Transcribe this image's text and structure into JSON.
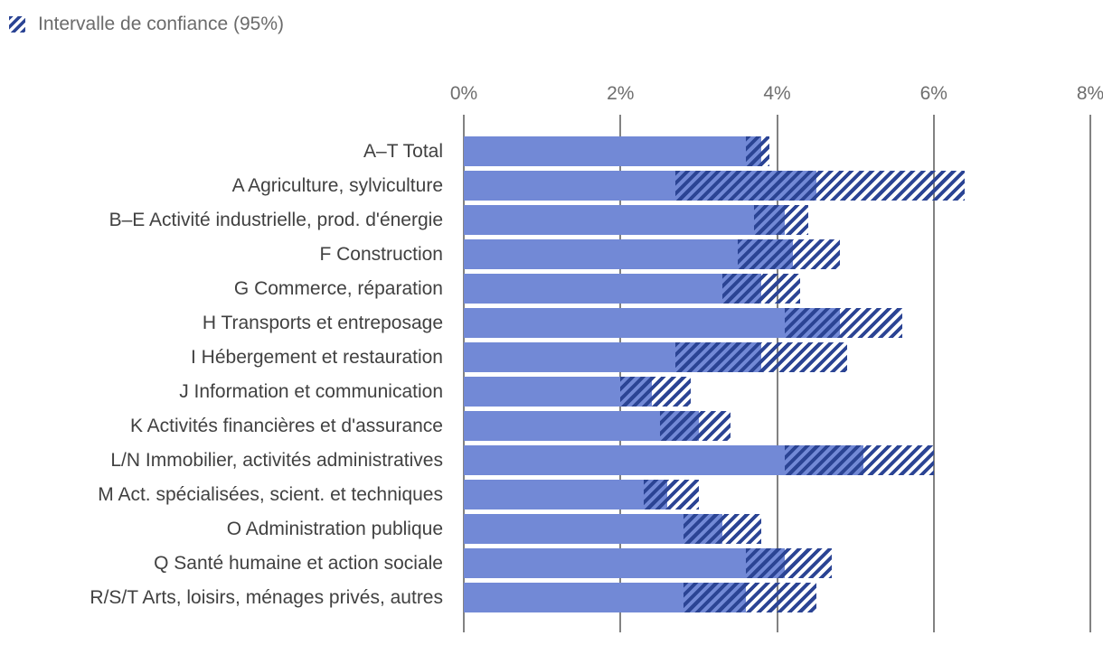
{
  "legend": {
    "label": "Intervalle de confiance (95%)",
    "swatch_icon": "diagonal-hatch-swatch"
  },
  "chart_data": {
    "type": "bar",
    "orientation": "horizontal",
    "title": "",
    "xlabel": "",
    "ylabel": "",
    "x_ticks": [
      "0%",
      "2%",
      "4%",
      "6%",
      "8%"
    ],
    "x_tick_values": [
      0,
      2,
      4,
      6,
      8
    ],
    "xlim": [
      0,
      8
    ],
    "unit": "%",
    "grid": "vertical-on",
    "legend_entries": [
      "Intervalle de confiance (95%)"
    ],
    "categories": [
      "A–T Total",
      "A Agriculture, sylviculture",
      "B–E Activité industrielle, prod. d'énergie",
      "F Construction",
      "G Commerce, réparation",
      "H Transports et entreposage",
      "I Hébergement et restauration",
      "J Information et communication",
      "K Activités financières et d'assurance",
      "L/N Immobilier, activités administratives",
      "M Act. spécialisées, scient. et techniques",
      "O Administration publique",
      "Q Santé humaine et action sociale",
      "R/S/T Arts, loisirs, ménages privés, autres"
    ],
    "series": [
      {
        "name": "Estimation",
        "values": [
          3.8,
          4.5,
          4.1,
          4.2,
          3.8,
          4.8,
          3.8,
          2.4,
          3.0,
          5.1,
          2.6,
          3.3,
          4.1,
          3.6
        ]
      },
      {
        "name": "Intervalle de confiance 95% — borne inférieure",
        "values": [
          3.6,
          2.7,
          3.7,
          3.5,
          3.3,
          4.1,
          2.7,
          2.0,
          2.5,
          4.1,
          2.3,
          2.8,
          3.6,
          2.8
        ]
      },
      {
        "name": "Intervalle de confiance 95% — borne supérieure",
        "values": [
          3.9,
          6.4,
          4.4,
          4.8,
          4.3,
          5.6,
          4.9,
          2.9,
          3.4,
          6.0,
          3.0,
          3.8,
          4.7,
          4.5
        ]
      }
    ],
    "colors": {
      "bar": "#7289d6",
      "hatch": "#2b4494",
      "gridline": "#828282",
      "axis_text": "#6e6e6e",
      "category_text": "#414141",
      "legend_text": "#6b6b6b"
    }
  }
}
